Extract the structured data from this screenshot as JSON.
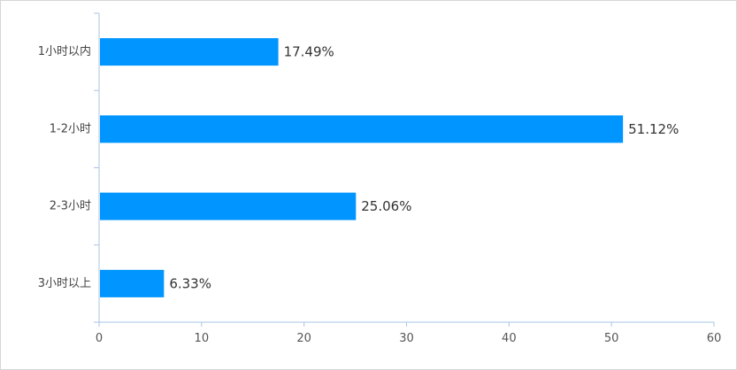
{
  "chart_data": {
    "type": "bar",
    "orientation": "horizontal",
    "categories": [
      "1小时以内",
      "1-2小时",
      "2-3小时",
      "3小时以上"
    ],
    "values": [
      17.49,
      51.12,
      25.06,
      6.33
    ],
    "data_labels": [
      "17.49%",
      "51.12%",
      "25.06%",
      "6.33%"
    ],
    "xlim": [
      0,
      60
    ],
    "x_ticks": [
      0,
      10,
      20,
      30,
      40,
      50,
      60
    ],
    "grid": false,
    "legend": "none",
    "bar_color": "#0095ff",
    "axis_color": "#a9c4e6"
  }
}
